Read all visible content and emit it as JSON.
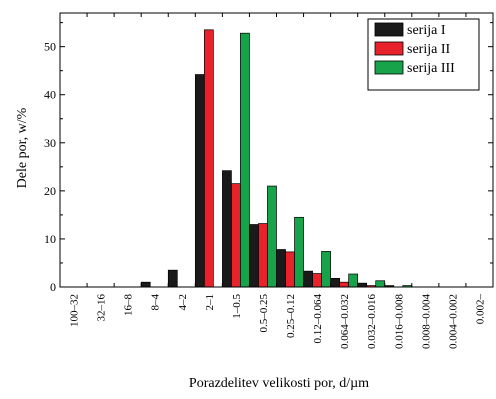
{
  "chart_data": {
    "type": "bar",
    "title": "",
    "xlabel": "Porazdelitev velikosti por, d/µm",
    "ylabel": "Dele por, w/%",
    "ylim": [
      0,
      57
    ],
    "yticks": [
      0,
      10,
      20,
      30,
      40,
      50
    ],
    "grid": false,
    "legend_position": "top-right",
    "categories": [
      "100–32",
      "32–16",
      "16–8",
      "8–4",
      "4–2",
      "2–1",
      "1–0.5",
      "0.5–0.25",
      "0.25–0.12",
      "0.12–0.064",
      "0.064–0.032",
      "0.032–0.016",
      "0.016–0.008",
      "0.008–0.004",
      "0.004–0.002",
      "0.002–"
    ],
    "series": [
      {
        "name": "serija I",
        "color": "#1a1a1a",
        "values": [
          0,
          0,
          0,
          1.0,
          3.5,
          44.2,
          24.2,
          13.0,
          7.8,
          3.3,
          1.8,
          0.8,
          0.3,
          0,
          0,
          0
        ]
      },
      {
        "name": "serija II",
        "color": "#e8222b",
        "values": [
          0,
          0,
          0,
          0,
          0,
          53.5,
          21.5,
          13.2,
          7.3,
          2.8,
          1.0,
          0.3,
          0,
          0,
          0,
          0
        ]
      },
      {
        "name": "serija III",
        "color": "#16a34a",
        "values": [
          0,
          0,
          0,
          0,
          0,
          0,
          52.8,
          21.0,
          14.5,
          7.4,
          2.7,
          1.3,
          0.3,
          0,
          0,
          0
        ]
      }
    ]
  }
}
